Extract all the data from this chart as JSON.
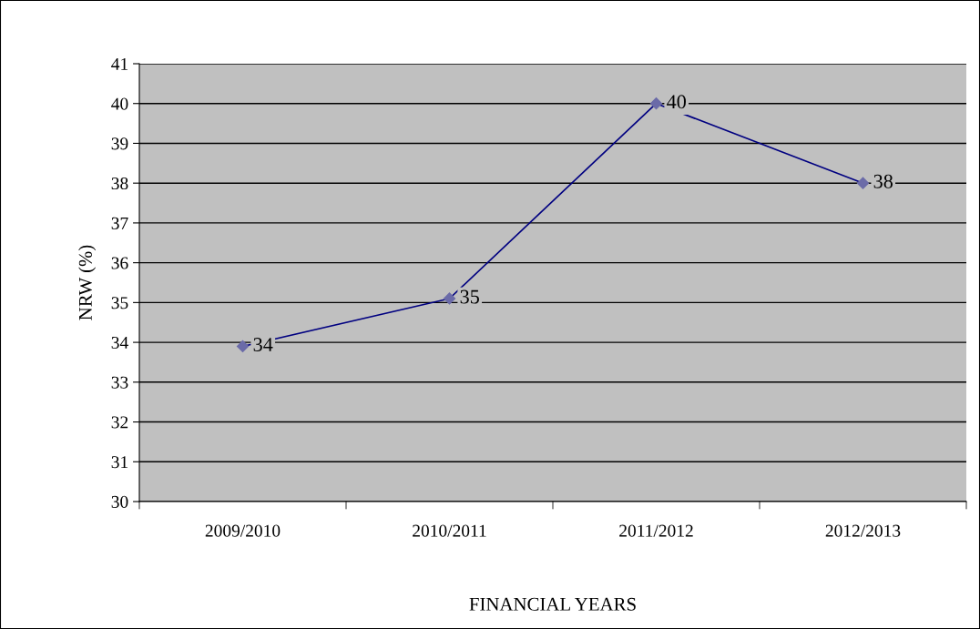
{
  "chart_data": {
    "type": "line",
    "xlabel": "FINANCIAL YEARS",
    "ylabel": "NRW (%)",
    "categories": [
      "2009/2010",
      "2010/2011",
      "2011/2012",
      "2012/2013"
    ],
    "series": [
      {
        "color": "#000080",
        "values": [
          33.9,
          35.1,
          40,
          38
        ],
        "value_labels": [
          "34",
          "35",
          "40",
          "38"
        ]
      }
    ],
    "ylim": [
      30,
      41
    ],
    "yticks": [
      30,
      31,
      32,
      33,
      34,
      35,
      36,
      37,
      38,
      39,
      40,
      41
    ],
    "grid": "y",
    "marker": "diamond",
    "line_style": "solid",
    "legend": false
  }
}
